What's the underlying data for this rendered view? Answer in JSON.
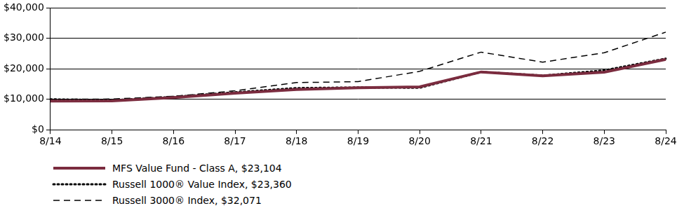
{
  "chart_data": {
    "type": "line",
    "categories": [
      "8/14",
      "8/15",
      "8/16",
      "8/17",
      "8/18",
      "8/19",
      "8/20",
      "8/21",
      "8/22",
      "8/23",
      "8/24"
    ],
    "series": [
      {
        "name": "MFS Value Fund - Class A, $23,104",
        "color": "#7b2c3f",
        "line_style": "solid",
        "values": [
          9425,
          9500,
          10600,
          12000,
          13200,
          13800,
          14100,
          19000,
          17700,
          18900,
          23104
        ]
      },
      {
        "name": "Russell 1000® Value Index, $23,360",
        "color": "#000000",
        "line_style": "dotted",
        "values": [
          10000,
          9700,
          10800,
          12300,
          13700,
          13900,
          13800,
          19000,
          17800,
          19500,
          23360
        ]
      },
      {
        "name": "Russell 3000® Index, $32,071",
        "color": "#000000",
        "line_style": "dashed",
        "values": [
          10000,
          10100,
          11000,
          12800,
          15500,
          15800,
          19200,
          25500,
          22200,
          25300,
          32071
        ]
      }
    ],
    "ylim": [
      0,
      40000
    ],
    "yticks": [
      {
        "value": 0,
        "label": "$0"
      },
      {
        "value": 10000,
        "label": "$10,000"
      },
      {
        "value": 20000,
        "label": "$20,000"
      },
      {
        "value": 30000,
        "label": "$30,000"
      },
      {
        "value": 40000,
        "label": "$40,000"
      }
    ],
    "grid": true,
    "legend": "bottom"
  }
}
